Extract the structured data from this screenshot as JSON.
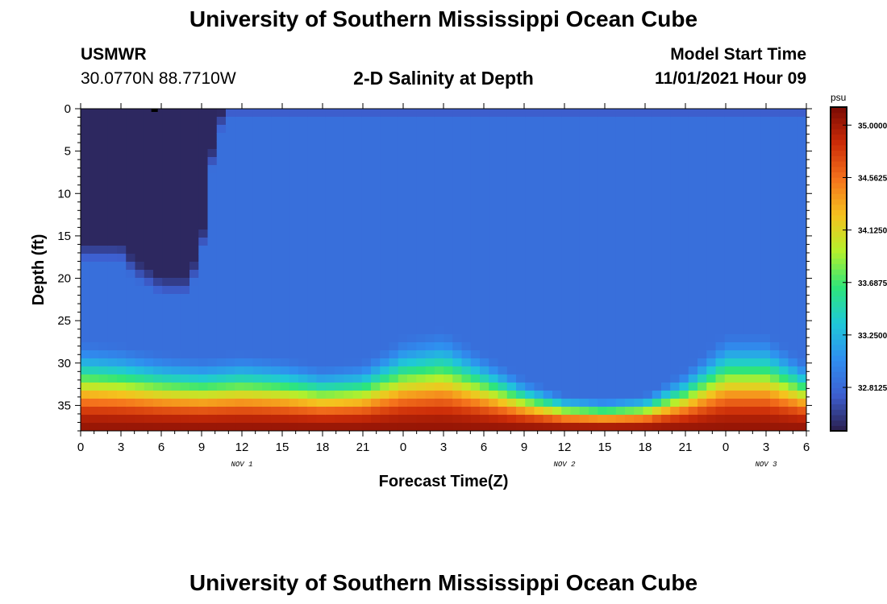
{
  "header": {
    "title": "University of Southern Mississippi Ocean Cube",
    "station_name": "USMWR",
    "station_coords": "30.0770N  88.7710W",
    "plot_title": "2-D Salinity at Depth",
    "model_start_label": "Model Start Time",
    "model_start_value": "11/01/2021 Hour 09"
  },
  "footer": {
    "title": "University of Southern Mississippi Ocean Cube"
  },
  "chart_data": {
    "type": "heatmap",
    "title": "2-D Salinity at Depth",
    "xlabel": "Forecast Time(Z)",
    "ylabel": "Depth (ft)",
    "xlim": [
      0,
      54
    ],
    "ylim": [
      0,
      38
    ],
    "y_inverted": true,
    "x_ticks": [
      0,
      3,
      6,
      9,
      12,
      15,
      18,
      21,
      24,
      27,
      30,
      33,
      36,
      39,
      42,
      45,
      48,
      51,
      54
    ],
    "x_tick_labels": [
      "0",
      "3",
      "6",
      "9",
      "12",
      "15",
      "18",
      "21",
      "0",
      "3",
      "6",
      "9",
      "12",
      "15",
      "18",
      "21",
      "0",
      "3",
      "6"
    ],
    "y_ticks": [
      0,
      5,
      10,
      15,
      20,
      25,
      30,
      35
    ],
    "y_tick_labels": [
      "0",
      "5",
      "10",
      "15",
      "20",
      "25",
      "30",
      "35"
    ],
    "date_labels": [
      {
        "x": 12,
        "label": "NOV 1"
      },
      {
        "x": 36,
        "label": "NOV 2"
      },
      {
        "x": 51,
        "label": "NOV 3"
      }
    ],
    "colorbar": {
      "unit": "psu",
      "range": [
        32.45,
        35.15
      ],
      "ticks": [
        32.8125,
        33.25,
        33.6875,
        34.125,
        34.5625,
        35.0
      ],
      "tick_labels": [
        "32.8125",
        "33.2500",
        "33.6875",
        "34.1250",
        "34.5625",
        "35.0000"
      ],
      "colors": [
        "#2a1d4a",
        "#3d5fd0",
        "#2f8ef0",
        "#1fc8d8",
        "#2ee57a",
        "#b4f02c",
        "#f5c21e",
        "#f5731c",
        "#cc2c08",
        "#7a0a04"
      ]
    },
    "surface_salinity": 32.5,
    "upper_salinity": 32.85,
    "bottom_salinity": 35.05,
    "fresh_layer_depth_profile": {
      "x": [
        0,
        3,
        4,
        6,
        8,
        9,
        10,
        11,
        54
      ],
      "depth": [
        17,
        17,
        19,
        21,
        21,
        17,
        3,
        0,
        0
      ]
    },
    "halocline_depth_profile": {
      "x": [
        0,
        3,
        6,
        9,
        12,
        15,
        18,
        21,
        24,
        27,
        30,
        33,
        36,
        39,
        42,
        45,
        48,
        51,
        54
      ],
      "depth": [
        27.5,
        28.0,
        29.0,
        29.5,
        29.0,
        29.5,
        30.5,
        30.0,
        27.0,
        26.0,
        29.0,
        32.0,
        34.0,
        34.5,
        34.0,
        31.0,
        26.5,
        26.5,
        30.0
      ]
    },
    "marker": {
      "x": 5.5,
      "depth": 0
    }
  },
  "axes_text": {
    "x_label": "Forecast Time(Z)",
    "y_label": "Depth (ft)",
    "colorbar_unit": "psu"
  }
}
